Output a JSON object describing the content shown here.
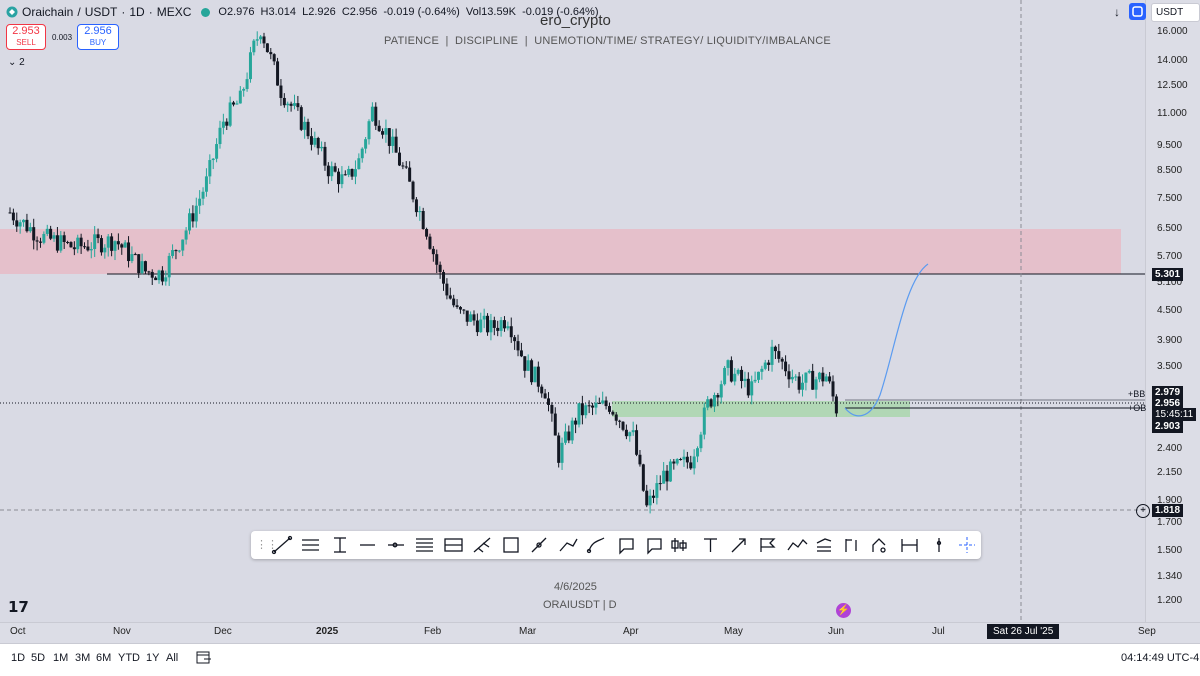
{
  "legend": {
    "symbol": "Oraichain",
    "sep1": "/",
    "quote": "USDT",
    "interval": "1D",
    "exchange": "MEXC",
    "open": "O2.976",
    "high": "H3.014",
    "low": "L2.926",
    "close": "C2.956",
    "change": "-0.019 (-0.64%)",
    "volume": "Vol13.59K",
    "vol_change": "-0.019 (-0.64%)"
  },
  "trade": {
    "sell_price": "2.953",
    "sell_label": "SELL",
    "spread": "0.003",
    "buy_price": "2.956",
    "buy_label": "BUY"
  },
  "indicators_toggle": "2",
  "watermark": {
    "title": "ero_crypto",
    "subtitle": "PATIENCE  |  DISCIPLINE  |  UNEMOTION/TIME/ STRATEGY/ LIQUIDITY/IMBALANCE",
    "date": "4/6/2025",
    "ticker": "ORAIUSDT | D"
  },
  "currency_select": "USDT",
  "price_ticks": [
    "16.000",
    "14.000",
    "12.500",
    "11.000",
    "9.500",
    "8.500",
    "7.500",
    "6.500",
    "5.700",
    "5.100",
    "4.500",
    "3.900",
    "3.500",
    "2.400",
    "2.150",
    "1.900",
    "1.700",
    "1.500",
    "1.340",
    "1.200"
  ],
  "price_labels": {
    "level_line": "5.301",
    "bb_tag": "+BB",
    "bb_price": "2.979",
    "current_price": "2.956",
    "countdown": "15:45:11",
    "ob_tag": "+OB",
    "ob_price": "2.903",
    "crosshair_price": "1.818"
  },
  "time_labels": [
    "Oct",
    "Nov",
    "Dec",
    "2025",
    "Feb",
    "Mar",
    "Apr",
    "May",
    "Jun",
    "Jul",
    "Sep"
  ],
  "crosshair_date": "Sat 26 Jul '25",
  "bottom": {
    "ranges": [
      "1D",
      "5D",
      "1M",
      "3M",
      "6M",
      "YTD",
      "1Y",
      "All"
    ],
    "clock": "04:14:49 UTC-4"
  },
  "colors": {
    "bull": "#26a69a",
    "bear": "#131722",
    "supply_zone": "#e8b6c3",
    "demand_zone": "#a8d8b0",
    "projection": "#5b9bf0"
  },
  "chart_data": {
    "type": "candlestick",
    "symbol": "ORAIUSDT",
    "interval": "1D",
    "y_scale": "log",
    "ylim": [
      1.15,
      16.5
    ],
    "x_labels": [
      "Oct",
      "Nov",
      "Dec",
      "2025",
      "Feb",
      "Mar",
      "Apr",
      "May",
      "Jun",
      "Jul",
      "Sep"
    ],
    "close_path": [
      [
        "2024-10-01",
        7.0
      ],
      [
        "2024-10-10",
        6.3
      ],
      [
        "2024-10-20",
        6.0
      ],
      [
        "2024-11-01",
        6.2
      ],
      [
        "2024-11-10",
        5.4
      ],
      [
        "2024-11-15",
        5.35
      ],
      [
        "2024-11-22",
        6.5
      ],
      [
        "2024-11-28",
        8.0
      ],
      [
        "2024-12-03",
        10.5
      ],
      [
        "2024-12-08",
        11.5
      ],
      [
        "2024-12-12",
        14.5
      ],
      [
        "2024-12-14",
        15.8
      ],
      [
        "2024-12-20",
        12.0
      ],
      [
        "2024-12-28",
        10.0
      ],
      [
        "2025-01-03",
        8.5
      ],
      [
        "2025-01-08",
        8.0
      ],
      [
        "2025-01-12",
        8.8
      ],
      [
        "2025-01-16",
        11.0
      ],
      [
        "2025-01-20",
        10.0
      ],
      [
        "2025-01-26",
        8.2
      ],
      [
        "2025-02-01",
        6.5
      ],
      [
        "2025-02-05",
        5.3
      ],
      [
        "2025-02-10",
        4.5
      ],
      [
        "2025-02-20",
        4.2
      ],
      [
        "2025-02-25",
        4.4
      ],
      [
        "2025-03-02",
        3.6
      ],
      [
        "2025-03-08",
        3.2
      ],
      [
        "2025-03-12",
        2.4
      ],
      [
        "2025-03-18",
        2.9
      ],
      [
        "2025-03-27",
        3.0
      ],
      [
        "2025-04-03",
        2.6
      ],
      [
        "2025-04-07",
        1.9
      ],
      [
        "2025-04-12",
        2.2
      ],
      [
        "2025-04-20",
        2.35
      ],
      [
        "2025-04-25",
        3.0
      ],
      [
        "2025-05-01",
        3.5
      ],
      [
        "2025-05-08",
        3.2
      ],
      [
        "2025-05-14",
        3.8
      ],
      [
        "2025-05-22",
        3.3
      ],
      [
        "2025-05-30",
        3.4
      ],
      [
        "2025-06-02",
        2.956
      ]
    ],
    "projection": [
      [
        "2025-06-04",
        2.9
      ],
      [
        "2025-06-10",
        2.95
      ],
      [
        "2025-06-18",
        4.0
      ],
      [
        "2025-06-26",
        5.5
      ]
    ],
    "zones": [
      {
        "name": "supply",
        "low": 5.301,
        "high": 6.5
      },
      {
        "name": "demand",
        "low": 2.85,
        "high": 3.0
      }
    ],
    "horizontal_level": 5.301,
    "last_price": 2.956
  }
}
